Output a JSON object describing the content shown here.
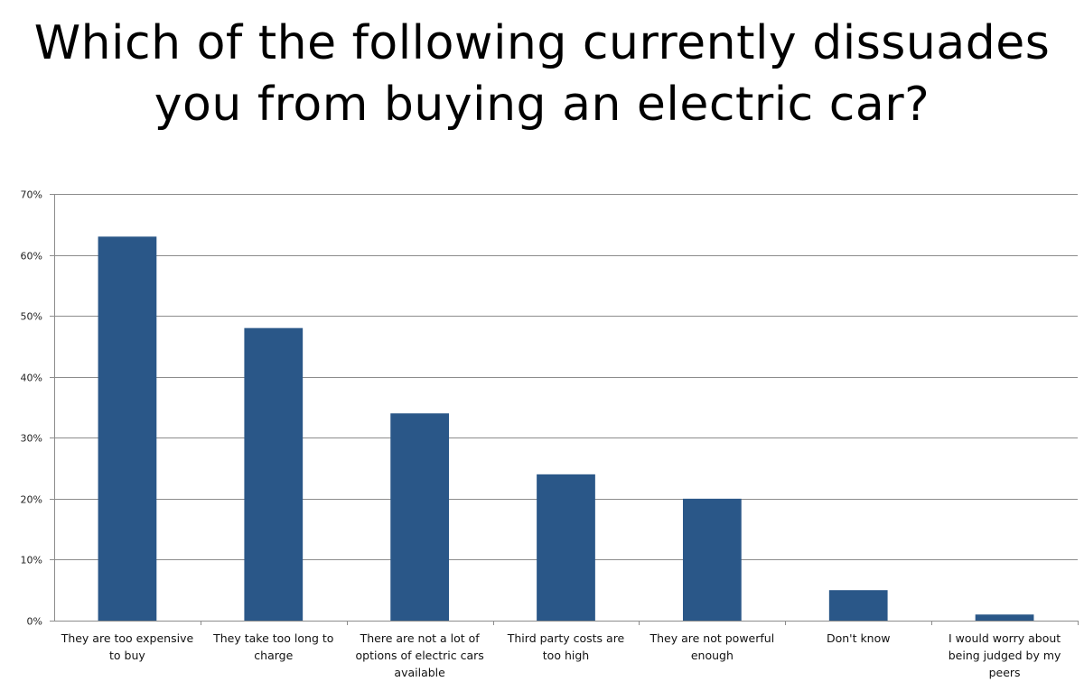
{
  "title_lines": [
    "Which of the following currently dissuades",
    "you from buying an electric car?"
  ],
  "chart_data": {
    "type": "bar",
    "title": "Which of the following currently dissuades you from buying an electric car?",
    "xlabel": "",
    "ylabel": "",
    "ylim": [
      0,
      70
    ],
    "yticks": [
      0,
      10,
      20,
      30,
      40,
      50,
      60,
      70
    ],
    "ytick_labels": [
      "0%",
      "10%",
      "20%",
      "30%",
      "40%",
      "50%",
      "60%",
      "70%"
    ],
    "grid": true,
    "legend": "none",
    "bar_color": "#2A5788",
    "categories": [
      [
        "They are too expensive",
        "to buy"
      ],
      [
        "They take too long to",
        "charge"
      ],
      [
        "There are not a lot of",
        "options of electric cars",
        "available"
      ],
      [
        "Third party costs are",
        "too high"
      ],
      [
        "They are not powerful",
        "enough"
      ],
      [
        "Don't know"
      ],
      [
        "I would worry about",
        "being judged by my",
        "peers"
      ]
    ],
    "values": [
      63,
      48,
      34,
      24,
      20,
      5,
      1
    ]
  }
}
